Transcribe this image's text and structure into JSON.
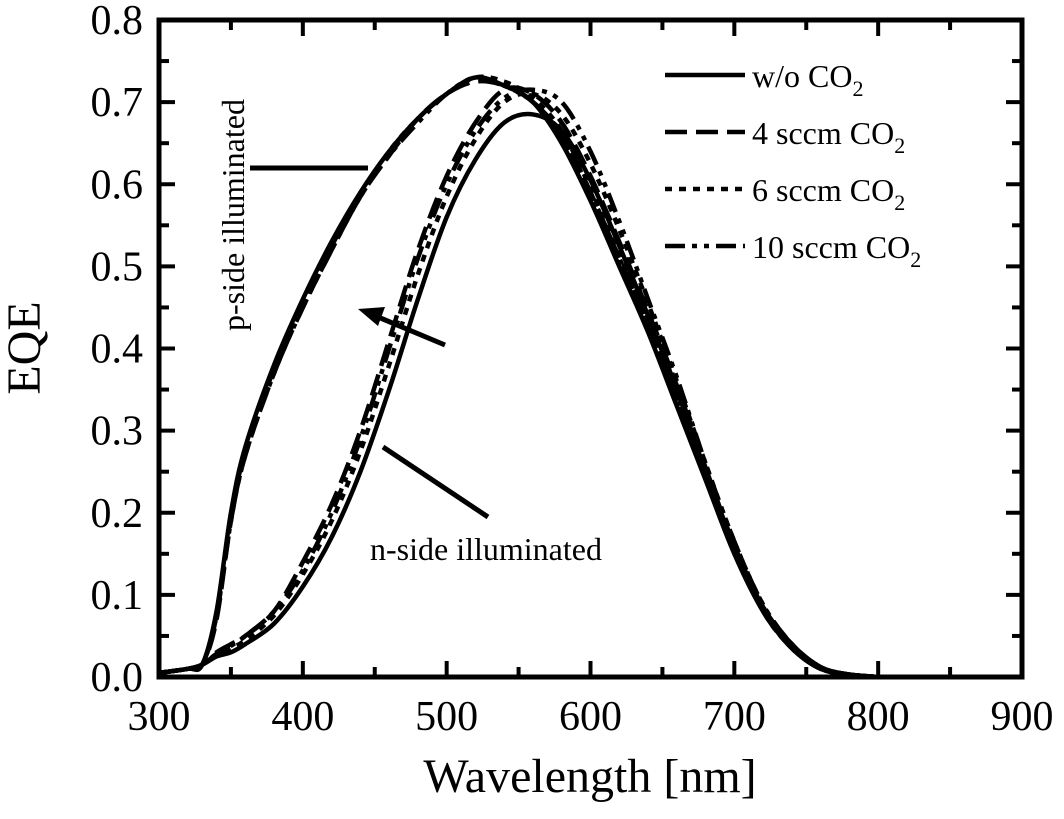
{
  "chart_data": {
    "type": "line",
    "title": "",
    "xlabel": "Wavelength [nm]",
    "ylabel": "EQE",
    "xlim": [
      300,
      900
    ],
    "ylim": [
      0.0,
      0.8
    ],
    "xticks": [
      "300",
      "400",
      "500",
      "600",
      "700",
      "800",
      "900"
    ],
    "yticks": [
      "0.0",
      "0.1",
      "0.2",
      "0.3",
      "0.4",
      "0.5",
      "0.6",
      "0.7",
      "0.8"
    ],
    "grid": false,
    "legend_position": "top-right",
    "line_color": "#000000",
    "annotations": {
      "p_side": "p-side illuminated",
      "n_side": "n-side illuminated"
    },
    "x": [
      300,
      320,
      330,
      340,
      350,
      360,
      380,
      400,
      420,
      440,
      460,
      480,
      500,
      520,
      540,
      560,
      580,
      600,
      620,
      640,
      660,
      680,
      700,
      720,
      740,
      760,
      780,
      800
    ],
    "series": [
      {
        "name": "w/o CO",
        "sub": "2",
        "dash": "solid",
        "p_side": [
          0.005,
          0.01,
          0.015,
          0.08,
          0.2,
          0.28,
          0.38,
          0.46,
          0.53,
          0.59,
          0.64,
          0.68,
          0.71,
          0.73,
          0.72,
          0.7,
          0.65,
          0.58,
          0.5,
          0.42,
          0.33,
          0.24,
          0.15,
          0.08,
          0.035,
          0.01,
          0.003,
          0.0
        ],
        "n_side": [
          0.005,
          0.01,
          0.015,
          0.025,
          0.03,
          0.04,
          0.065,
          0.11,
          0.17,
          0.25,
          0.35,
          0.46,
          0.56,
          0.63,
          0.675,
          0.685,
          0.665,
          0.605,
          0.525,
          0.44,
          0.35,
          0.25,
          0.16,
          0.085,
          0.04,
          0.012,
          0.003,
          0.0
        ]
      },
      {
        "name": "4 sccm CO",
        "sub": "2",
        "dash": "dash",
        "p_side": [
          0.005,
          0.01,
          0.015,
          0.07,
          0.19,
          0.27,
          0.37,
          0.45,
          0.52,
          0.585,
          0.635,
          0.68,
          0.71,
          0.725,
          0.72,
          0.7,
          0.66,
          0.59,
          0.51,
          0.43,
          0.34,
          0.245,
          0.155,
          0.08,
          0.035,
          0.01,
          0.003,
          0.0
        ],
        "n_side": [
          0.005,
          0.01,
          0.015,
          0.03,
          0.04,
          0.05,
          0.08,
          0.14,
          0.21,
          0.3,
          0.41,
          0.52,
          0.61,
          0.675,
          0.715,
          0.71,
          0.675,
          0.61,
          0.53,
          0.445,
          0.355,
          0.255,
          0.16,
          0.085,
          0.04,
          0.012,
          0.003,
          0.0
        ]
      },
      {
        "name": "6 sccm CO",
        "sub": "2",
        "dash": "dot",
        "p_side": [
          0.005,
          0.01,
          0.015,
          0.075,
          0.195,
          0.275,
          0.375,
          0.455,
          0.525,
          0.585,
          0.64,
          0.68,
          0.71,
          0.73,
          0.725,
          0.705,
          0.665,
          0.595,
          0.515,
          0.43,
          0.34,
          0.245,
          0.155,
          0.08,
          0.035,
          0.01,
          0.003,
          0.0
        ],
        "n_side": [
          0.005,
          0.01,
          0.015,
          0.028,
          0.035,
          0.045,
          0.075,
          0.125,
          0.19,
          0.275,
          0.38,
          0.49,
          0.585,
          0.655,
          0.7,
          0.71,
          0.685,
          0.625,
          0.545,
          0.455,
          0.36,
          0.26,
          0.165,
          0.088,
          0.04,
          0.012,
          0.003,
          0.0
        ]
      },
      {
        "name": "10 sccm CO",
        "sub": "2",
        "dash": "dashdotdot",
        "p_side": [
          0.005,
          0.01,
          0.015,
          0.075,
          0.19,
          0.27,
          0.37,
          0.45,
          0.52,
          0.585,
          0.635,
          0.675,
          0.71,
          0.73,
          0.72,
          0.7,
          0.66,
          0.59,
          0.51,
          0.43,
          0.34,
          0.245,
          0.155,
          0.08,
          0.035,
          0.01,
          0.003,
          0.0
        ],
        "n_side": [
          0.005,
          0.01,
          0.015,
          0.028,
          0.038,
          0.05,
          0.08,
          0.13,
          0.2,
          0.29,
          0.4,
          0.51,
          0.6,
          0.665,
          0.705,
          0.715,
          0.7,
          0.64,
          0.555,
          0.46,
          0.365,
          0.26,
          0.165,
          0.088,
          0.04,
          0.012,
          0.003,
          0.0
        ]
      }
    ]
  }
}
